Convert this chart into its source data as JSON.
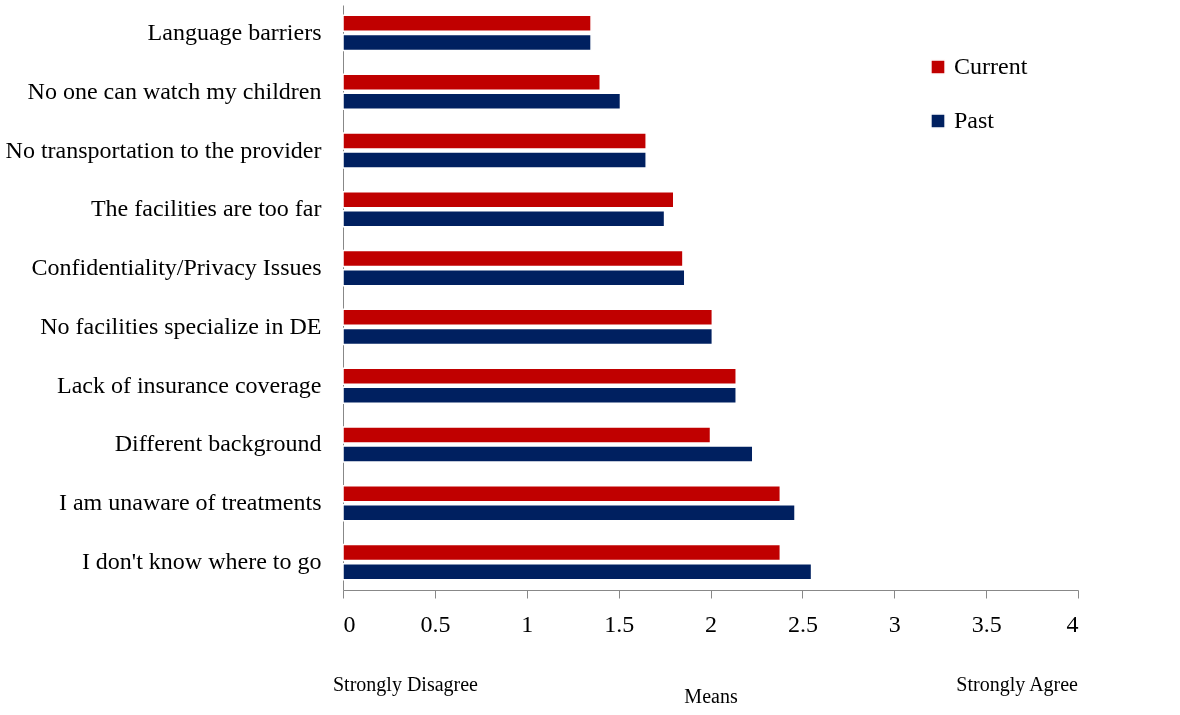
{
  "chart_data": {
    "type": "bar",
    "orientation": "horizontal",
    "categories": [
      "Language barriers",
      "No one can watch my children",
      "No transportation to the provider",
      "The facilities are too far ",
      "Confidentiality/Privacy Issues",
      "No facilities specialize in DE",
      "Lack of insurance coverage",
      "Different background",
      "I am unaware of treatments",
      "I don't know where to go"
    ],
    "series": [
      {
        "name": "Current",
        "color": "#c00000",
        "values": [
          1.35,
          1.4,
          1.65,
          1.8,
          1.85,
          2.01,
          2.14,
          2.0,
          2.38,
          2.38
        ]
      },
      {
        "name": "Past",
        "color": "#002060",
        "values": [
          1.35,
          1.51,
          1.65,
          1.75,
          1.86,
          2.01,
          2.14,
          2.23,
          2.46,
          2.55
        ]
      }
    ],
    "xlim": [
      0,
      4
    ],
    "xticks": [
      0,
      0.5,
      1,
      1.5,
      2,
      2.5,
      3,
      3.5,
      4
    ],
    "xlabel": "Means",
    "annotations": [
      "Strongly Disagree",
      "Strongly Agree"
    ],
    "legend": "top right",
    "grid": false
  }
}
